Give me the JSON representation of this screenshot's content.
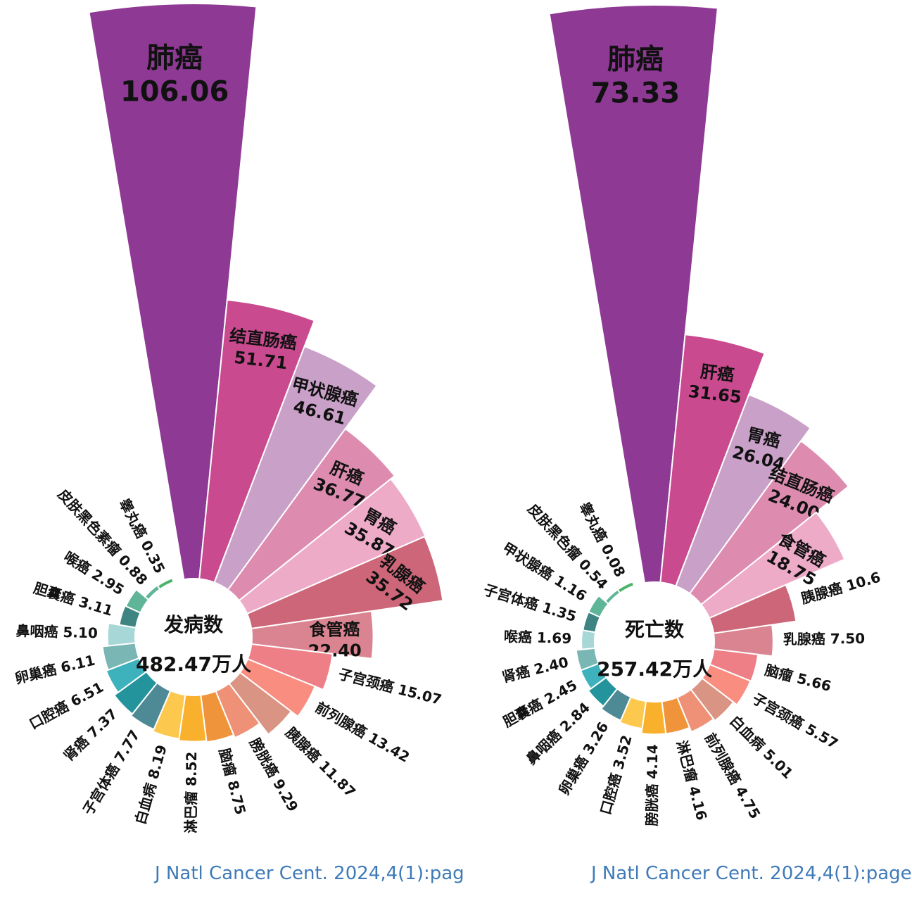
{
  "chart_data": [
    {
      "type": "rose",
      "center_title": "发病数",
      "center_total": "482.47万人",
      "unit": "万人",
      "categories": [
        "肺癌",
        "结直肠癌",
        "甲状腺癌",
        "肝癌",
        "胃癌",
        "乳腺癌",
        "食管癌",
        "子宫颈癌",
        "前列腺癌",
        "胰腺癌",
        "膀胱癌",
        "脑瘤",
        "淋巴瘤",
        "白血病",
        "子宫体癌",
        "肾癌",
        "口腔癌",
        "卵巢癌",
        "鼻咽癌",
        "胆囊癌",
        "喉癌",
        "皮肤黑色素瘤",
        "睾丸癌"
      ],
      "values": [
        106.06,
        51.71,
        46.61,
        36.77,
        35.87,
        35.72,
        22.4,
        15.07,
        13.42,
        11.87,
        9.29,
        8.75,
        8.52,
        8.19,
        7.77,
        7.37,
        6.51,
        6.11,
        5.1,
        3.11,
        2.95,
        0.88,
        0.35
      ],
      "value_labels": [
        "106.06",
        "51.71",
        "46.61",
        "36.77",
        "35.87",
        "35.72",
        "22.40",
        "15.07",
        "13.42",
        "11.87",
        "9.29",
        "8.75",
        "8.52",
        "8.19",
        "7.77",
        "7.37",
        "6.51",
        "6.11",
        "5.10",
        "3.11",
        "2.95",
        "0.88",
        "0.35"
      ],
      "colors": [
        "#8e3a94",
        "#c94a8e",
        "#c9a0c8",
        "#dd8cb0",
        "#eeabc8",
        "#cc6678",
        "#d98490",
        "#ef7f87",
        "#f98d7f",
        "#d99483",
        "#ef9177",
        "#f0943c",
        "#f9b02c",
        "#fcc84d",
        "#4e8a96",
        "#23939c",
        "#3eb2bc",
        "#7ab7b4",
        "#a7d7d6",
        "#3d8482",
        "#5fb597",
        "#5fb597",
        "#4bb46a"
      ],
      "citation": "J Natl Cancer Cent. 2024,4(1):pag"
    },
    {
      "type": "rose",
      "center_title": "死亡数",
      "center_total": "257.42万人",
      "unit": "万人",
      "categories": [
        "肺癌",
        "肝癌",
        "胃癌",
        "结直肠癌",
        "食管癌",
        "胰腺癌",
        "乳腺癌",
        "脑瘤",
        "子宫颈癌",
        "白血病",
        "前列腺癌",
        "淋巴瘤",
        "膀胱癌",
        "口腔癌",
        "卵巢癌",
        "鼻咽癌",
        "胆囊癌",
        "肾癌",
        "喉癌",
        "子宫体癌",
        "甲状腺癌",
        "皮肤黑色瘤",
        "睾丸癌"
      ],
      "values": [
        73.33,
        31.65,
        26.04,
        24.0,
        18.75,
        10.6,
        7.5,
        5.66,
        5.57,
        5.01,
        4.75,
        4.16,
        4.14,
        3.52,
        3.26,
        2.84,
        2.45,
        2.4,
        1.69,
        1.35,
        1.16,
        0.54,
        0.08
      ],
      "value_labels": [
        "73.33",
        "31.65",
        "26.04",
        "24.00",
        "18.75",
        "10.6",
        "7.50",
        "5.66",
        "5.57",
        "5.01",
        "4.75",
        "4.16",
        "4.14",
        "3.52",
        "3.26",
        "2.84",
        "2.45",
        "2.40",
        "1.69",
        "1.35",
        "1.16",
        "0.54",
        "0.08"
      ],
      "colors": [
        "#8e3a94",
        "#c94a8e",
        "#c9a0c8",
        "#dd8cb0",
        "#eeabc8",
        "#cc6678",
        "#d98490",
        "#ef7f87",
        "#f98d7f",
        "#d99483",
        "#ef9177",
        "#f0943c",
        "#f9b02c",
        "#fcc84d",
        "#4e8a96",
        "#23939c",
        "#3eb2bc",
        "#7ab7b4",
        "#a7d7d6",
        "#3d8482",
        "#5fb597",
        "#5fb597",
        "#4bb46a"
      ],
      "citation": "J Natl Cancer Cent. 2024,4(1):page"
    }
  ]
}
